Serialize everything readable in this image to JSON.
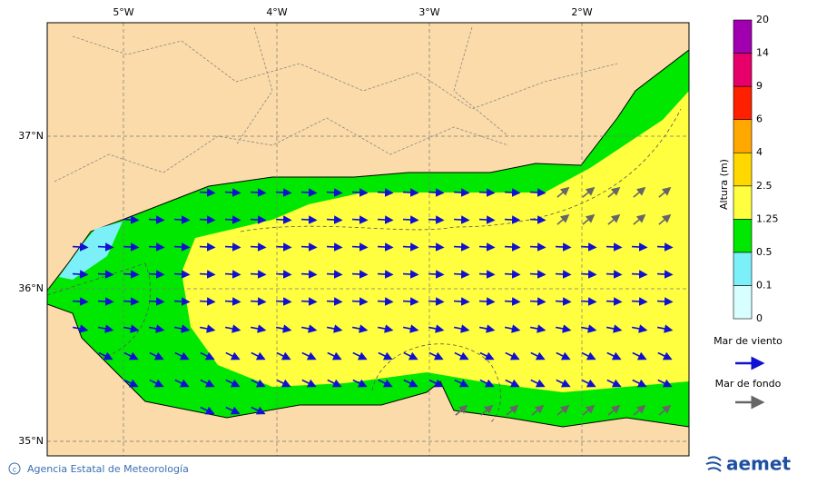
{
  "map": {
    "lon_labels": [
      "5°W",
      "4°W",
      "3°W",
      "2°W"
    ],
    "lat_labels": [
      "37°N",
      "36°N",
      "35°N"
    ]
  },
  "colorbar": {
    "title": "Altura (m)",
    "levels": [
      "0",
      "0.1",
      "0.5",
      "1.25",
      "2.5",
      "4",
      "6",
      "9",
      "14",
      "20"
    ],
    "colors": [
      "#d8ffff",
      "#7cf0f8",
      "#00e800",
      "#ffff40",
      "#ffd800",
      "#ffa800",
      "#ff2000",
      "#e8006a",
      "#a000b0"
    ]
  },
  "legend": {
    "wind_sea": "Mar de viento",
    "swell": "Mar de fondo"
  },
  "footer": {
    "agency": "Agencia Estatal de Meteorología",
    "logo": "aemet"
  }
}
